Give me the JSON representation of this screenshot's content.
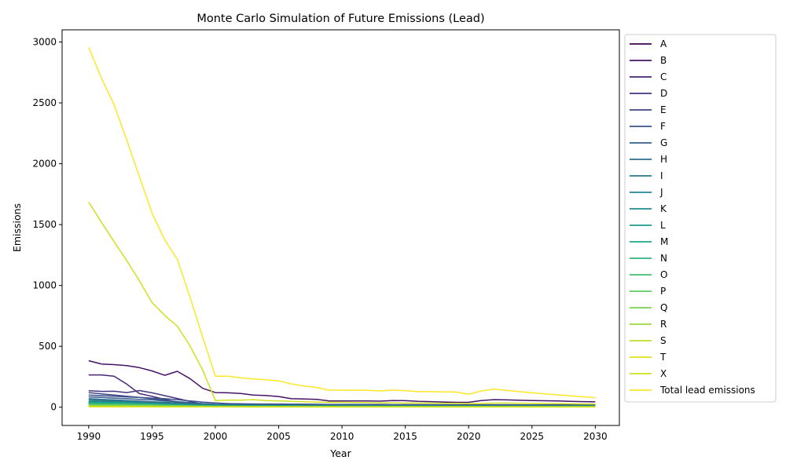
{
  "chart_data": {
    "type": "line",
    "title": "Monte Carlo Simulation of Future Emissions (Lead)",
    "xlabel": "Year",
    "ylabel": "Emissions",
    "xlim": [
      1987.9,
      2031.9
    ],
    "ylim": [
      -150,
      3100
    ],
    "xticks": [
      1990,
      1995,
      2000,
      2005,
      2010,
      2015,
      2020,
      2025,
      2030
    ],
    "yticks": [
      0,
      500,
      1000,
      1500,
      2000,
      2500,
      3000
    ],
    "grid": false,
    "legend_position": "outside-right",
    "x": [
      1990,
      1991,
      1992,
      1993,
      1994,
      1995,
      1996,
      1997,
      1998,
      1999,
      2000,
      2001,
      2002,
      2003,
      2004,
      2005,
      2006,
      2007,
      2008,
      2009,
      2010,
      2011,
      2012,
      2013,
      2014,
      2015,
      2016,
      2017,
      2018,
      2019,
      2020,
      2021,
      2022,
      2023,
      2024,
      2025,
      2026,
      2027,
      2028,
      2029,
      2030
    ],
    "series": [
      {
        "name": "A",
        "color": "#440154",
        "values": [
          30,
          29,
          28,
          27,
          26,
          25,
          22,
          20,
          18,
          16,
          14,
          13,
          12,
          12,
          11,
          11,
          10,
          10,
          10,
          9,
          9,
          9,
          9,
          9,
          8,
          8,
          8,
          8,
          8,
          8,
          7,
          7,
          7,
          7,
          7,
          7,
          7,
          7,
          7,
          7,
          7
        ]
      },
      {
        "name": "B",
        "color": "#471365",
        "values": [
          382,
          355,
          350,
          342,
          325,
          298,
          262,
          295,
          235,
          155,
          120,
          118,
          113,
          100,
          96,
          88,
          70,
          68,
          64,
          52,
          52,
          52,
          52,
          50,
          55,
          54,
          48,
          46,
          43,
          40,
          40,
          55,
          62,
          60,
          57,
          55,
          53,
          51,
          48,
          46,
          44
        ]
      },
      {
        "name": "C",
        "color": "#482475",
        "values": [
          265,
          265,
          255,
          190,
          112,
          90,
          65,
          40,
          28,
          18,
          14,
          12,
          11,
          10,
          10,
          9,
          9,
          9,
          8,
          8,
          8,
          8,
          8,
          7,
          7,
          7,
          7,
          7,
          7,
          7,
          6,
          6,
          6,
          6,
          6,
          6,
          6,
          6,
          6,
          6,
          6
        ]
      },
      {
        "name": "D",
        "color": "#463480",
        "values": [
          135,
          130,
          131,
          120,
          137,
          118,
          95,
          72,
          48,
          25,
          15,
          13,
          12,
          12,
          11,
          11,
          10,
          10,
          10,
          9,
          9,
          9,
          9,
          9,
          9,
          8,
          8,
          8,
          8,
          8,
          8,
          8,
          8,
          8,
          8,
          8,
          8,
          8,
          8,
          8,
          8
        ]
      },
      {
        "name": "E",
        "color": "#414487",
        "values": [
          120,
          110,
          100,
          90,
          80,
          70,
          58,
          45,
          30,
          20,
          18,
          30,
          26,
          25,
          24,
          24,
          23,
          22,
          22,
          21,
          21,
          20,
          20,
          20,
          19,
          19,
          19,
          18,
          18,
          18,
          18,
          17,
          17,
          17,
          17,
          17,
          17,
          17,
          17,
          16,
          16
        ]
      },
      {
        "name": "F",
        "color": "#3b528b",
        "values": [
          100,
          95,
          90,
          85,
          80,
          75,
          70,
          62,
          52,
          42,
          35,
          30,
          28,
          27,
          26,
          26,
          25,
          25,
          24,
          23,
          23,
          22,
          22,
          22,
          21,
          21,
          21,
          20,
          20,
          20,
          20,
          20,
          20,
          20,
          19,
          19,
          19,
          19,
          19,
          19,
          19
        ]
      },
      {
        "name": "G",
        "color": "#355f8d",
        "values": [
          85,
          80,
          75,
          70,
          65,
          60,
          52,
          45,
          38,
          30,
          25,
          22,
          20,
          19,
          18,
          18,
          17,
          17,
          16,
          16,
          16,
          15,
          15,
          15,
          15,
          14,
          14,
          14,
          14,
          14,
          13,
          13,
          13,
          13,
          13,
          13,
          13,
          13,
          13,
          13,
          13
        ]
      },
      {
        "name": "H",
        "color": "#2f6c8e",
        "values": [
          70,
          65,
          60,
          55,
          50,
          45,
          40,
          35,
          30,
          25,
          22,
          20,
          18,
          17,
          16,
          16,
          15,
          15,
          15,
          14,
          14,
          14,
          14,
          13,
          13,
          13,
          13,
          13,
          12,
          12,
          12,
          12,
          12,
          12,
          12,
          12,
          12,
          12,
          12,
          12,
          12
        ]
      },
      {
        "name": "I",
        "color": "#2a788e",
        "values": [
          60,
          56,
          52,
          48,
          44,
          40,
          35,
          30,
          26,
          22,
          19,
          17,
          16,
          15,
          15,
          14,
          14,
          13,
          13,
          13,
          12,
          12,
          12,
          12,
          12,
          11,
          11,
          11,
          11,
          11,
          11,
          11,
          11,
          11,
          11,
          11,
          11,
          10,
          10,
          10,
          10
        ]
      },
      {
        "name": "J",
        "color": "#25848e",
        "values": [
          50,
          47,
          44,
          40,
          36,
          32,
          28,
          24,
          21,
          18,
          16,
          15,
          14,
          13,
          13,
          12,
          12,
          12,
          11,
          11,
          11,
          11,
          10,
          10,
          10,
          10,
          10,
          10,
          10,
          9,
          9,
          9,
          9,
          9,
          9,
          9,
          9,
          9,
          9,
          9,
          9
        ]
      },
      {
        "name": "K",
        "color": "#21918c",
        "values": [
          45,
          42,
          40,
          37,
          34,
          30,
          26,
          22,
          19,
          16,
          14,
          13,
          12,
          12,
          11,
          11,
          11,
          10,
          10,
          10,
          10,
          9,
          9,
          9,
          9,
          9,
          9,
          9,
          8,
          8,
          8,
          8,
          8,
          8,
          8,
          8,
          8,
          8,
          8,
          8,
          8
        ]
      },
      {
        "name": "L",
        "color": "#1e9c89",
        "values": [
          40,
          38,
          36,
          33,
          30,
          27,
          23,
          20,
          17,
          14,
          12,
          11,
          11,
          10,
          10,
          10,
          9,
          9,
          9,
          9,
          8,
          8,
          8,
          8,
          8,
          8,
          8,
          8,
          7,
          7,
          7,
          7,
          7,
          7,
          7,
          7,
          7,
          7,
          7,
          7,
          7
        ]
      },
      {
        "name": "M",
        "color": "#22a884",
        "values": [
          35,
          33,
          31,
          29,
          27,
          24,
          21,
          18,
          15,
          12,
          11,
          10,
          10,
          9,
          9,
          9,
          8,
          8,
          8,
          8,
          8,
          7,
          7,
          7,
          7,
          7,
          7,
          7,
          7,
          7,
          6,
          6,
          6,
          6,
          6,
          6,
          6,
          6,
          6,
          6,
          6
        ]
      },
      {
        "name": "N",
        "color": "#2fb47c",
        "values": [
          30,
          28,
          27,
          25,
          23,
          21,
          18,
          15,
          13,
          11,
          10,
          9,
          9,
          8,
          8,
          8,
          8,
          7,
          7,
          7,
          7,
          7,
          7,
          6,
          6,
          6,
          6,
          6,
          6,
          6,
          6,
          6,
          6,
          6,
          6,
          6,
          6,
          6,
          6,
          6,
          6
        ]
      },
      {
        "name": "O",
        "color": "#44bf70",
        "values": [
          25,
          24,
          23,
          21,
          20,
          18,
          16,
          13,
          11,
          9,
          8,
          8,
          7,
          7,
          7,
          7,
          6,
          6,
          6,
          6,
          6,
          6,
          6,
          6,
          5,
          5,
          5,
          5,
          5,
          5,
          5,
          5,
          5,
          5,
          5,
          5,
          5,
          5,
          5,
          5,
          5
        ]
      },
      {
        "name": "P",
        "color": "#5ec962",
        "values": [
          20,
          19,
          18,
          17,
          16,
          15,
          13,
          11,
          9,
          8,
          7,
          7,
          6,
          6,
          6,
          6,
          6,
          5,
          5,
          5,
          5,
          5,
          5,
          5,
          5,
          5,
          5,
          5,
          5,
          5,
          4,
          4,
          4,
          4,
          4,
          4,
          4,
          4,
          4,
          4,
          4
        ]
      },
      {
        "name": "Q",
        "color": "#7ad151",
        "values": [
          15,
          14,
          14,
          13,
          12,
          11,
          10,
          9,
          8,
          7,
          6,
          6,
          5,
          5,
          5,
          5,
          5,
          5,
          5,
          4,
          4,
          4,
          4,
          4,
          4,
          4,
          4,
          4,
          4,
          4,
          4,
          4,
          4,
          4,
          4,
          4,
          4,
          4,
          4,
          4,
          4
        ]
      },
      {
        "name": "R",
        "color": "#9bd93c",
        "values": [
          10,
          10,
          9,
          9,
          8,
          8,
          7,
          6,
          5,
          5,
          4,
          4,
          4,
          4,
          4,
          3,
          3,
          3,
          3,
          3,
          3,
          3,
          3,
          3,
          3,
          3,
          3,
          3,
          3,
          3,
          3,
          3,
          3,
          3,
          3,
          3,
          3,
          3,
          3,
          3,
          3
        ]
      },
      {
        "name": "S",
        "color": "#bddf26",
        "values": [
          5,
          5,
          5,
          5,
          4,
          4,
          4,
          3,
          3,
          3,
          3,
          3,
          2,
          2,
          2,
          2,
          2,
          2,
          2,
          2,
          2,
          2,
          2,
          2,
          2,
          2,
          2,
          2,
          2,
          2,
          2,
          2,
          2,
          2,
          2,
          2,
          2,
          2,
          2,
          2,
          2
        ]
      },
      {
        "name": "T",
        "color": "#dfe318",
        "values": [
          3,
          3,
          3,
          3,
          3,
          2,
          2,
          2,
          2,
          2,
          2,
          2,
          2,
          2,
          2,
          2,
          2,
          2,
          2,
          2,
          2,
          2,
          2,
          2,
          2,
          2,
          2,
          2,
          2,
          2,
          2,
          2,
          2,
          2,
          2,
          2,
          2,
          2,
          2,
          2,
          2
        ]
      },
      {
        "name": "X",
        "color": "#cfe11c",
        "values": [
          1685,
          1520,
          1360,
          1205,
          1040,
          860,
          755,
          665,
          505,
          305,
          55,
          58,
          58,
          62,
          55,
          52,
          48,
          45,
          42,
          40,
          40,
          38,
          38,
          36,
          36,
          34,
          34,
          33,
          32,
          32,
          30,
          30,
          34,
          34,
          32,
          31,
          30,
          29,
          28,
          27,
          26
        ]
      },
      {
        "name": "Total lead emissions",
        "color": "#fde725",
        "values": [
          2955,
          2705,
          2485,
          2195,
          1895,
          1595,
          1375,
          1215,
          905,
          575,
          255,
          255,
          242,
          232,
          226,
          216,
          192,
          174,
          162,
          140,
          140,
          138,
          138,
          134,
          140,
          136,
          128,
          128,
          126,
          125,
          106,
          134,
          148,
          138,
          128,
          118,
          110,
          102,
          94,
          86,
          78
        ]
      }
    ]
  }
}
